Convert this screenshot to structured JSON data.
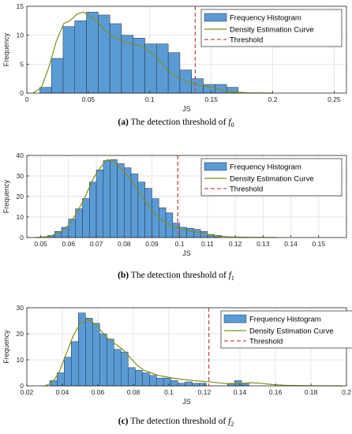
{
  "colors": {
    "bar_fill": "#5b9bd5",
    "bar_edge": "#1f2f3f",
    "density": "#7f8f1f",
    "threshold": "#c0504d",
    "grid": "#dcdcdc",
    "axis": "#262626"
  },
  "chart_data": [
    {
      "type": "bar",
      "caption": {
        "label": "(a)",
        "text": "The detection threshold of",
        "var": "f",
        "sub": "0"
      },
      "xlabel": "JS",
      "ylabel": "Frequency",
      "xlim": [
        0,
        0.26
      ],
      "ylim": [
        0,
        15
      ],
      "xticks": [
        0,
        0.05,
        0.1,
        0.15,
        0.2,
        0.25
      ],
      "xtick_labels": [
        "0",
        "0.05",
        "0.1",
        "0.15",
        "0.2",
        "0.25"
      ],
      "yticks": [
        0,
        5,
        10,
        15
      ],
      "ytick_labels": [
        "0",
        "5",
        "10",
        "15"
      ],
      "grid": true,
      "legend_position": "top-right",
      "legend": [
        "Frequency Histogram",
        "Density Estimation Curve",
        "Threshold"
      ],
      "bin_start": 0.0105,
      "bin_width": 0.0095,
      "values": [
        1,
        6,
        11.5,
        12.5,
        14,
        13.5,
        12,
        10,
        9.5,
        8.5,
        8.5,
        7,
        4,
        2.5,
        1.5,
        1.5,
        1
      ],
      "density": [
        [
          0.005,
          0
        ],
        [
          0.012,
          1
        ],
        [
          0.018,
          4.5
        ],
        [
          0.024,
          9
        ],
        [
          0.03,
          12
        ],
        [
          0.035,
          12.5
        ],
        [
          0.041,
          13.7
        ],
        [
          0.046,
          14
        ],
        [
          0.052,
          13.2
        ],
        [
          0.058,
          12.2
        ],
        [
          0.064,
          10.8
        ],
        [
          0.07,
          9.8
        ],
        [
          0.076,
          9.2
        ],
        [
          0.082,
          8.7
        ],
        [
          0.088,
          8.4
        ],
        [
          0.094,
          8
        ],
        [
          0.1,
          7.2
        ],
        [
          0.106,
          6
        ],
        [
          0.112,
          4.5
        ],
        [
          0.118,
          3.3
        ],
        [
          0.124,
          2.6
        ],
        [
          0.13,
          2
        ],
        [
          0.136,
          1.6
        ],
        [
          0.142,
          1.3
        ],
        [
          0.148,
          1.1
        ],
        [
          0.154,
          0.8
        ],
        [
          0.16,
          0.5
        ],
        [
          0.168,
          0.2
        ],
        [
          0.18,
          0.05
        ],
        [
          0.2,
          0
        ]
      ],
      "threshold": 0.137
    },
    {
      "type": "bar",
      "caption": {
        "label": "(b)",
        "text": "The detection threshold of",
        "var": "f",
        "sub": "1"
      },
      "xlabel": "JS",
      "ylabel": "Frequency",
      "xlim": [
        0.045,
        0.16
      ],
      "ylim": [
        0,
        40
      ],
      "xticks": [
        0.05,
        0.06,
        0.07,
        0.08,
        0.09,
        0.1,
        0.11,
        0.12,
        0.13,
        0.14,
        0.15
      ],
      "xtick_labels": [
        "0.05",
        "0.06",
        "0.07",
        "0.08",
        "0.09",
        "0.1",
        "0.11",
        "0.12",
        "0.13",
        "0.14",
        "0.15"
      ],
      "yticks": [
        0,
        10,
        20,
        30,
        40
      ],
      "ytick_labels": [
        "0",
        "10",
        "20",
        "30",
        "40"
      ],
      "grid": true,
      "legend_position": "top-right",
      "legend": [
        "Frequency Histogram",
        "Density Estimation Curve",
        "Threshold"
      ],
      "bin_start": 0.0525,
      "bin_width": 0.0025,
      "values": [
        1,
        3,
        5,
        9,
        14,
        19,
        27,
        33,
        37.5,
        38,
        36,
        34,
        31,
        27,
        24,
        19,
        14.5,
        12,
        7,
        5,
        4.5,
        4,
        3,
        1.5,
        1
      ],
      "density": [
        [
          0.048,
          0
        ],
        [
          0.053,
          0.5
        ],
        [
          0.057,
          2.5
        ],
        [
          0.06,
          6
        ],
        [
          0.063,
          12
        ],
        [
          0.066,
          20
        ],
        [
          0.069,
          29
        ],
        [
          0.072,
          35
        ],
        [
          0.074,
          38
        ],
        [
          0.076,
          37
        ],
        [
          0.078,
          35
        ],
        [
          0.08,
          32
        ],
        [
          0.083,
          27
        ],
        [
          0.086,
          21
        ],
        [
          0.089,
          15
        ],
        [
          0.092,
          10
        ],
        [
          0.095,
          7
        ],
        [
          0.098,
          5
        ],
        [
          0.101,
          4
        ],
        [
          0.104,
          3
        ],
        [
          0.107,
          2.5
        ],
        [
          0.11,
          1.5
        ],
        [
          0.113,
          0.8
        ],
        [
          0.118,
          0.3
        ],
        [
          0.125,
          0.1
        ],
        [
          0.135,
          0
        ]
      ],
      "threshold": 0.0993
    },
    {
      "type": "bar",
      "caption": {
        "label": "(c)",
        "text": "The detection threshold of",
        "var": "f",
        "sub": "2"
      },
      "xlabel": "JS",
      "ylabel": "Frequency",
      "xlim": [
        0.02,
        0.2
      ],
      "ylim": [
        0,
        30
      ],
      "xticks": [
        0.02,
        0.04,
        0.06,
        0.08,
        0.1,
        0.12,
        0.14,
        0.16,
        0.18,
        0.2
      ],
      "xtick_labels": [
        "0.02",
        "0.04",
        "0.06",
        "0.08",
        "0.1",
        "0.12",
        "0.14",
        "0.16",
        "0.18",
        "0.2"
      ],
      "yticks": [
        0,
        10,
        20,
        30
      ],
      "ytick_labels": [
        "0",
        "10",
        "20",
        "30"
      ],
      "grid": true,
      "legend_position": "top-right",
      "legend": [
        "Frequency Histogram",
        "Density Estimation Curve",
        "Threshold"
      ],
      "bin_start": 0.033,
      "bin_width": 0.004,
      "values": [
        2,
        5,
        11,
        17,
        28,
        26,
        24,
        20,
        18,
        14,
        13,
        7,
        6,
        5,
        4,
        3,
        3,
        2,
        1,
        1.5,
        1,
        1,
        0,
        0,
        0,
        1,
        2,
        1
      ],
      "density": [
        [
          0.03,
          0
        ],
        [
          0.034,
          1
        ],
        [
          0.038,
          5
        ],
        [
          0.042,
          12
        ],
        [
          0.046,
          19
        ],
        [
          0.05,
          24
        ],
        [
          0.054,
          25.5
        ],
        [
          0.058,
          24
        ],
        [
          0.062,
          21
        ],
        [
          0.066,
          18
        ],
        [
          0.07,
          16
        ],
        [
          0.074,
          14
        ],
        [
          0.078,
          11
        ],
        [
          0.082,
          8
        ],
        [
          0.086,
          6
        ],
        [
          0.09,
          5
        ],
        [
          0.094,
          4
        ],
        [
          0.098,
          3.5
        ],
        [
          0.102,
          3
        ],
        [
          0.106,
          2.6
        ],
        [
          0.11,
          2.3
        ],
        [
          0.114,
          2
        ],
        [
          0.118,
          1.8
        ],
        [
          0.122,
          1.6
        ],
        [
          0.126,
          1.3
        ],
        [
          0.13,
          1
        ],
        [
          0.134,
          0.8
        ],
        [
          0.14,
          0.9
        ],
        [
          0.146,
          1.2
        ],
        [
          0.152,
          1
        ],
        [
          0.158,
          0.5
        ],
        [
          0.166,
          0.2
        ],
        [
          0.18,
          0.05
        ],
        [
          0.198,
          0
        ]
      ],
      "threshold": 0.1225
    }
  ]
}
